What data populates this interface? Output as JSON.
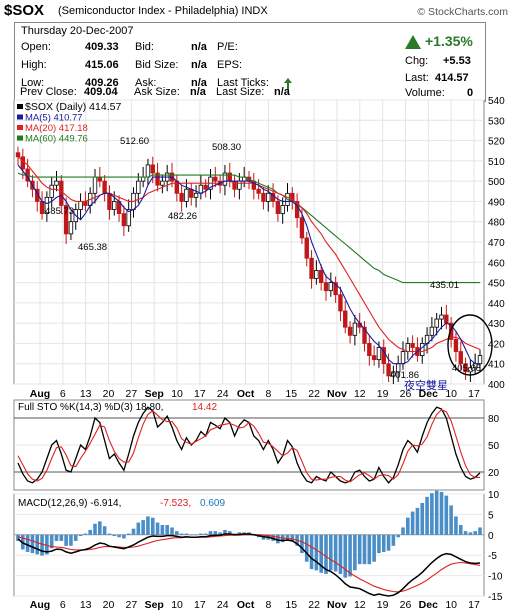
{
  "header": {
    "symbol": "$SOX",
    "subtitle": "(Semiconductor Index - Philadelphia)  INDX",
    "brand": "© StockCharts.com"
  },
  "quote": {
    "date_line": "Thursday  20-Dec-2007",
    "open_label": "Open:",
    "open": "409.33",
    "high_label": "High:",
    "high": "415.06",
    "low_label": "Low:",
    "low": "409.26",
    "prev_label": "Prev Close:",
    "prev": "409.04",
    "bid_label": "Bid:",
    "bid": "n/a",
    "bidsize_label": "Bid Size:",
    "bidsize": "n/a",
    "ask_label": "Ask:",
    "ask": "n/a",
    "asksize_label": "Ask Size:",
    "asksize": "n/a",
    "pe_label": "P/E:",
    "eps_label": "EPS:",
    "lastticks_label": "Last Ticks:",
    "lastsize_label": "Last Size:",
    "lastsize": "n/a",
    "pct_change": "+1.35%",
    "chg_label": "Chg:",
    "chg": "+5.53",
    "last_label": "Last:",
    "last": "414.57",
    "volume_label": "Volume:",
    "volume": "0",
    "up_color": "#2a7a2a"
  },
  "chart_data": [
    {
      "type": "candlestick",
      "legend": [
        {
          "label": "$SOX (Daily) 414.57",
          "color": "#000000"
        },
        {
          "label": "MA(5) 410.77",
          "color": "#1a1aa0"
        },
        {
          "label": "MA(20) 417.18",
          "color": "#e02020"
        },
        {
          "label": "MA(60) 449.76",
          "color": "#207a20"
        }
      ],
      "ylim": [
        400,
        540
      ],
      "yticks": [
        400,
        410,
        420,
        430,
        440,
        450,
        460,
        470,
        480,
        490,
        500,
        510,
        520,
        530,
        540
      ],
      "xticks": [
        "Aug",
        "6",
        "13",
        "20",
        "27",
        "Sep",
        "10",
        "17",
        "24",
        "Oct",
        "8",
        "15",
        "22",
        "Nov",
        "12",
        "19",
        "26",
        "Dec",
        "10",
        "17"
      ],
      "annotations": [
        "512.60",
        "508.30",
        "485.73",
        "465.38",
        "482.26",
        "435.01",
        "401.86",
        "405.08"
      ],
      "overlay_text": "夜空雙星",
      "close": [
        512,
        506,
        500,
        496,
        490,
        484,
        492,
        498,
        500,
        488,
        474,
        480,
        486,
        490,
        488,
        494,
        502,
        500,
        494,
        486,
        490,
        484,
        478,
        486,
        494,
        500,
        502,
        508,
        504,
        498,
        500,
        504,
        500,
        494,
        490,
        496,
        492,
        494,
        498,
        496,
        502,
        500,
        498,
        504,
        500,
        496,
        500,
        502,
        500,
        496,
        494,
        490,
        494,
        490,
        484,
        488,
        494,
        490,
        482,
        472,
        462,
        452,
        456,
        450,
        446,
        450,
        444,
        436,
        428,
        424,
        430,
        428,
        420,
        414,
        412,
        418,
        410,
        404,
        406,
        410,
        416,
        420,
        418,
        414,
        420,
        424,
        428,
        432,
        434,
        430,
        422,
        416,
        410,
        406,
        408,
        410,
        414
      ],
      "ma5": [
        508,
        505,
        502,
        498,
        494,
        490,
        489,
        490,
        492,
        493,
        490,
        486,
        483,
        481,
        484,
        488,
        490,
        493,
        494,
        494,
        492,
        490,
        487,
        485,
        486,
        488,
        492,
        498,
        502,
        502,
        502,
        502,
        502,
        500,
        498,
        497,
        496,
        495,
        494,
        495,
        497,
        498,
        499,
        500,
        500,
        500,
        500,
        500,
        500,
        499,
        498,
        496,
        495,
        493,
        491,
        490,
        490,
        490,
        488,
        484,
        478,
        470,
        464,
        458,
        453,
        451,
        449,
        447,
        442,
        437,
        433,
        430,
        427,
        424,
        421,
        419,
        416,
        412,
        410,
        410,
        410,
        411,
        414,
        416,
        418,
        420,
        422,
        425,
        428,
        430,
        429,
        426,
        422,
        417,
        412,
        410,
        410
      ],
      "ma20": [
        512,
        510,
        508,
        505,
        502,
        499,
        497,
        496,
        496,
        495,
        493,
        491,
        490,
        490,
        490,
        491,
        492,
        493,
        494,
        494,
        493,
        492,
        491,
        490,
        490,
        491,
        492,
        494,
        495,
        496,
        497,
        498,
        499,
        499,
        499,
        499,
        499,
        499,
        499,
        499,
        499,
        499,
        499,
        500,
        500,
        499,
        499,
        499,
        499,
        499,
        498,
        497,
        496,
        495,
        494,
        493,
        492,
        491,
        489,
        487,
        484,
        480,
        477,
        474,
        470,
        467,
        464,
        460,
        456,
        452,
        448,
        444,
        440,
        436,
        432,
        428,
        425,
        422,
        420,
        418,
        417,
        416,
        416,
        416,
        416,
        417,
        418,
        420,
        421,
        422,
        423,
        423,
        422,
        420,
        419,
        418,
        417
      ],
      "ma60": [
        504,
        503,
        503,
        502,
        502,
        502,
        502,
        502,
        502,
        502,
        502,
        502,
        502,
        502,
        502,
        502,
        502,
        502,
        502,
        502,
        502,
        502,
        502,
        502,
        502,
        502,
        502,
        502,
        503,
        503,
        503,
        503,
        503,
        503,
        503,
        503,
        503,
        503,
        503,
        503,
        503,
        503,
        503,
        503,
        503,
        503,
        502,
        502,
        501,
        500,
        499,
        498,
        497,
        496,
        494,
        493,
        491,
        490,
        488,
        487,
        485,
        483,
        481,
        479,
        477,
        475,
        473,
        471,
        469,
        467,
        465,
        463,
        461,
        459,
        457,
        456,
        454,
        453,
        452,
        451,
        450,
        450,
        450,
        450,
        450,
        450,
        450,
        450,
        450,
        450,
        450,
        450,
        450,
        450,
        450,
        450,
        450
      ]
    },
    {
      "type": "line",
      "legend": [
        {
          "label": "Full STO %K(14,3) %D(3) 18.80,",
          "color": "#000000"
        },
        {
          "label": "14.42",
          "color": "#e02020"
        }
      ],
      "ylim": [
        0,
        100
      ],
      "yticks": [
        20,
        50,
        80
      ],
      "k": [
        30,
        18,
        10,
        8,
        12,
        20,
        35,
        50,
        55,
        40,
        22,
        20,
        35,
        50,
        45,
        60,
        80,
        75,
        55,
        35,
        40,
        30,
        22,
        40,
        60,
        75,
        85,
        92,
        88,
        70,
        75,
        82,
        70,
        55,
        45,
        58,
        50,
        55,
        65,
        60,
        75,
        72,
        68,
        80,
        75,
        60,
        72,
        78,
        75,
        60,
        55,
        45,
        55,
        45,
        30,
        38,
        55,
        48,
        30,
        18,
        10,
        8,
        15,
        12,
        10,
        20,
        15,
        10,
        8,
        10,
        20,
        22,
        15,
        10,
        12,
        25,
        15,
        8,
        14,
        28,
        45,
        55,
        50,
        42,
        60,
        75,
        85,
        92,
        90,
        80,
        60,
        40,
        25,
        15,
        12,
        14,
        19
      ],
      "d": [
        38,
        28,
        18,
        12,
        10,
        13,
        22,
        35,
        47,
        48,
        39,
        27,
        26,
        35,
        43,
        52,
        62,
        72,
        70,
        55,
        43,
        35,
        31,
        31,
        41,
        58,
        73,
        84,
        88,
        83,
        78,
        76,
        76,
        69,
        57,
        53,
        51,
        54,
        57,
        60,
        67,
        69,
        72,
        73,
        74,
        72,
        69,
        70,
        75,
        71,
        63,
        53,
        52,
        48,
        43,
        38,
        41,
        47,
        44,
        32,
        19,
        12,
        11,
        12,
        12,
        14,
        15,
        15,
        11,
        9,
        13,
        17,
        19,
        16,
        12,
        16,
        17,
        16,
        12,
        17,
        29,
        43,
        50,
        49,
        51,
        59,
        73,
        84,
        89,
        87,
        77,
        60,
        42,
        27,
        17,
        14,
        14
      ]
    },
    {
      "type": "line",
      "legend": [
        {
          "label": "MACD(12,26,9) -6.914,",
          "color": "#000000"
        },
        {
          "label": "-7.523,",
          "color": "#e02020"
        },
        {
          "label": "0.609",
          "color": "#1a7ab0"
        }
      ],
      "ylim": [
        -15,
        10
      ],
      "yticks": [
        -15,
        -10,
        -5,
        0,
        5,
        10
      ],
      "macd": [
        -1,
        -2,
        -2.5,
        -3,
        -3.5,
        -4,
        -4.2,
        -4,
        -3.5,
        -3.6,
        -4.2,
        -4.5,
        -4.2,
        -3.8,
        -3.6,
        -3.2,
        -2.5,
        -2,
        -2.2,
        -2.8,
        -3,
        -3.2,
        -3.4,
        -3,
        -2.5,
        -1.8,
        -1.2,
        -0.6,
        -0.3,
        -0.4,
        -0.4,
        -0.2,
        -0.2,
        -0.4,
        -0.6,
        -0.5,
        -0.6,
        -0.6,
        -0.5,
        -0.5,
        -0.2,
        -0.1,
        -0.1,
        0.2,
        0.2,
        0,
        0.1,
        0.2,
        0.2,
        0,
        -0.2,
        -0.5,
        -0.6,
        -0.9,
        -1.3,
        -1.4,
        -1.3,
        -1.5,
        -2.2,
        -3.2,
        -4.5,
        -5.8,
        -6.6,
        -7.6,
        -8.5,
        -9,
        -9.8,
        -10.8,
        -12,
        -12.8,
        -13,
        -13.2,
        -13.8,
        -14.4,
        -14.8,
        -14.5,
        -14.8,
        -15,
        -14.8,
        -14.2,
        -13.2,
        -12,
        -11,
        -10.2,
        -9.2,
        -8,
        -6.8,
        -5.8,
        -5,
        -4.6,
        -4.8,
        -5.4,
        -6,
        -6.6,
        -6.9,
        -7,
        -6.9
      ],
      "signal": [
        -0.5,
        -0.8,
        -1.1,
        -1.5,
        -1.9,
        -2.3,
        -2.6,
        -2.9,
        -3,
        -3.1,
        -3.3,
        -3.6,
        -3.7,
        -3.7,
        -3.7,
        -3.6,
        -3.4,
        -3.1,
        -2.9,
        -2.9,
        -2.9,
        -3,
        -3.1,
        -3.1,
        -3,
        -2.8,
        -2.4,
        -2.1,
        -1.7,
        -1.4,
        -1.2,
        -1,
        -0.8,
        -0.7,
        -0.7,
        -0.6,
        -0.6,
        -0.6,
        -0.6,
        -0.6,
        -0.5,
        -0.4,
        -0.3,
        -0.2,
        -0.1,
        -0.1,
        -0.1,
        0,
        0,
        0,
        0,
        -0.1,
        -0.2,
        -0.4,
        -0.6,
        -0.8,
        -0.9,
        -1,
        -1.3,
        -1.7,
        -2.3,
        -3,
        -3.7,
        -4.5,
        -5.3,
        -6.1,
        -6.8,
        -7.6,
        -8.5,
        -9.4,
        -10.1,
        -10.8,
        -11.4,
        -12,
        -12.6,
        -13,
        -13.4,
        -13.7,
        -13.9,
        -14,
        -13.8,
        -13.4,
        -12.9,
        -12.4,
        -11.8,
        -11.1,
        -10.2,
        -9.4,
        -8.5,
        -7.8,
        -7.2,
        -6.9,
        -6.8,
        -6.9,
        -7.1,
        -7.3,
        -7.5
      ]
    }
  ]
}
